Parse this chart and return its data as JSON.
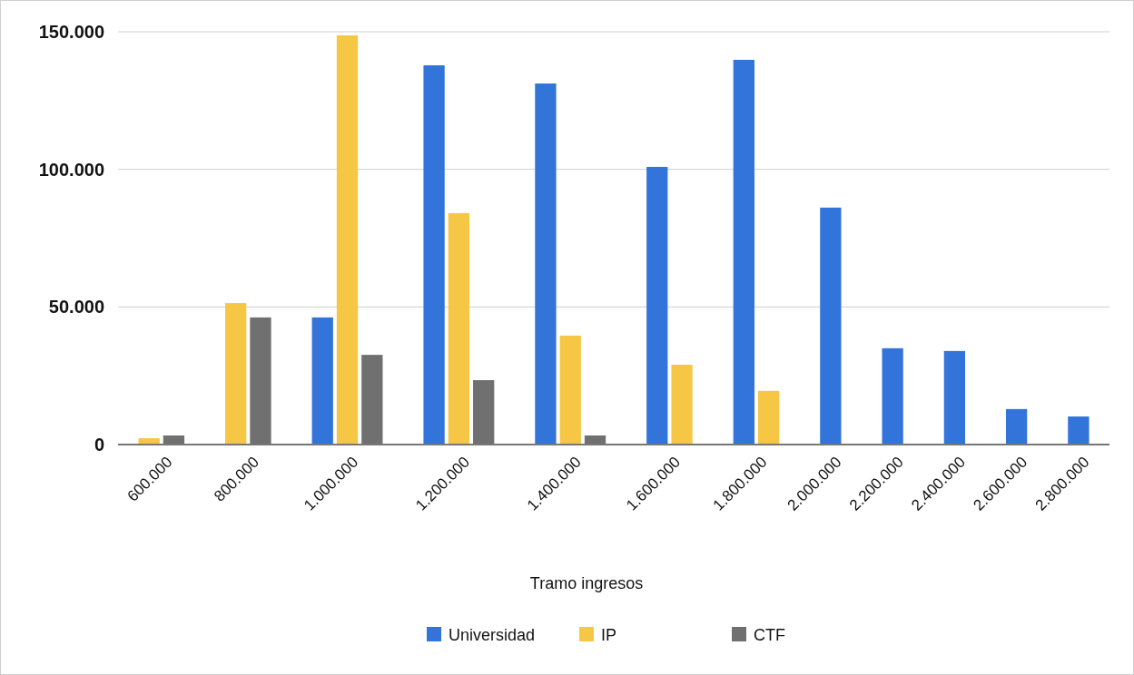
{
  "chart_data": {
    "type": "bar",
    "xlabel": "Tramo ingresos",
    "categories": [
      "600.000",
      "800.000",
      "1.000.000",
      "1.200.000",
      "1.400.000",
      "1.600.000",
      "1.800.000",
      "2.000.000",
      "2.200.000",
      "2.400.000",
      "2.600.000",
      "2.800.000"
    ],
    "series": [
      {
        "name": "Universidad",
        "color": "#3274d9",
        "values": [
          null,
          null,
          46200,
          137800,
          131200,
          100900,
          139800,
          86100,
          35000,
          34000,
          12900,
          10200
        ]
      },
      {
        "name": "IP",
        "color": "#f6c744",
        "values": [
          2300,
          51400,
          148700,
          84100,
          39600,
          29000,
          19500,
          null,
          null,
          null,
          null,
          null
        ]
      },
      {
        "name": "CTF",
        "color": "#707070",
        "values": [
          3300,
          46200,
          32600,
          23400,
          3300,
          null,
          null,
          null,
          null,
          null,
          null,
          null
        ]
      }
    ],
    "ylim": [
      0,
      150000
    ],
    "yticks": [
      {
        "value": 0,
        "label": "0"
      },
      {
        "value": 50000,
        "label": "50.000"
      },
      {
        "value": 100000,
        "label": "100.000"
      },
      {
        "value": 150000,
        "label": "150.000"
      }
    ],
    "grid": "y",
    "legend": "bottom"
  }
}
